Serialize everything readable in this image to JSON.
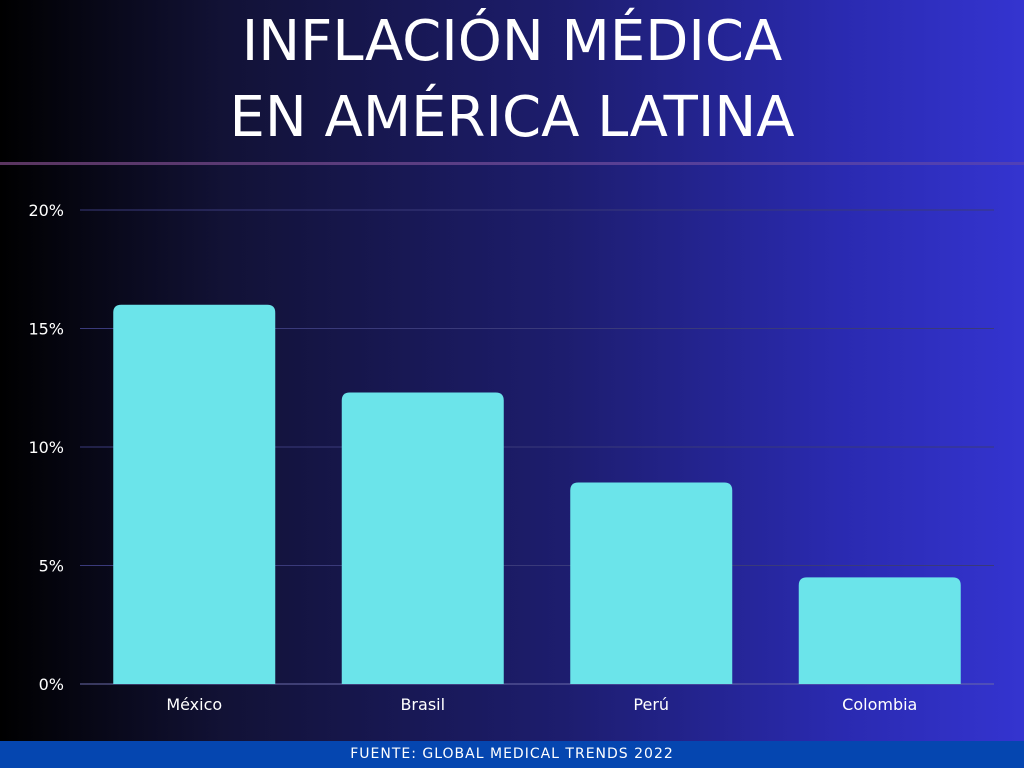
{
  "title_lines": [
    "INFLACIÓN MÉDICA",
    "EN AMÉRICA LATINA"
  ],
  "footer": "FUENTE: GLOBAL MEDICAL TRENDS 2022",
  "colors": {
    "bar": "#6be4ea",
    "text": "#ffffff",
    "footer_bg": "#0546b0",
    "grid": "#3a3a7a"
  },
  "chart_data": {
    "type": "bar",
    "title": "INFLACIÓN MÉDICA EN AMÉRICA LATINA",
    "categories": [
      "México",
      "Brasil",
      "Perú",
      "Colombia"
    ],
    "values": [
      16.0,
      12.3,
      8.5,
      4.5
    ],
    "unit": "%",
    "ylim": [
      0,
      20
    ],
    "yticks": [
      0,
      5,
      10,
      15,
      20
    ],
    "ytick_labels": [
      "0%",
      "5%",
      "10%",
      "15%",
      "20%"
    ],
    "xlabel": "",
    "ylabel": "",
    "grid": true,
    "legend": false
  }
}
